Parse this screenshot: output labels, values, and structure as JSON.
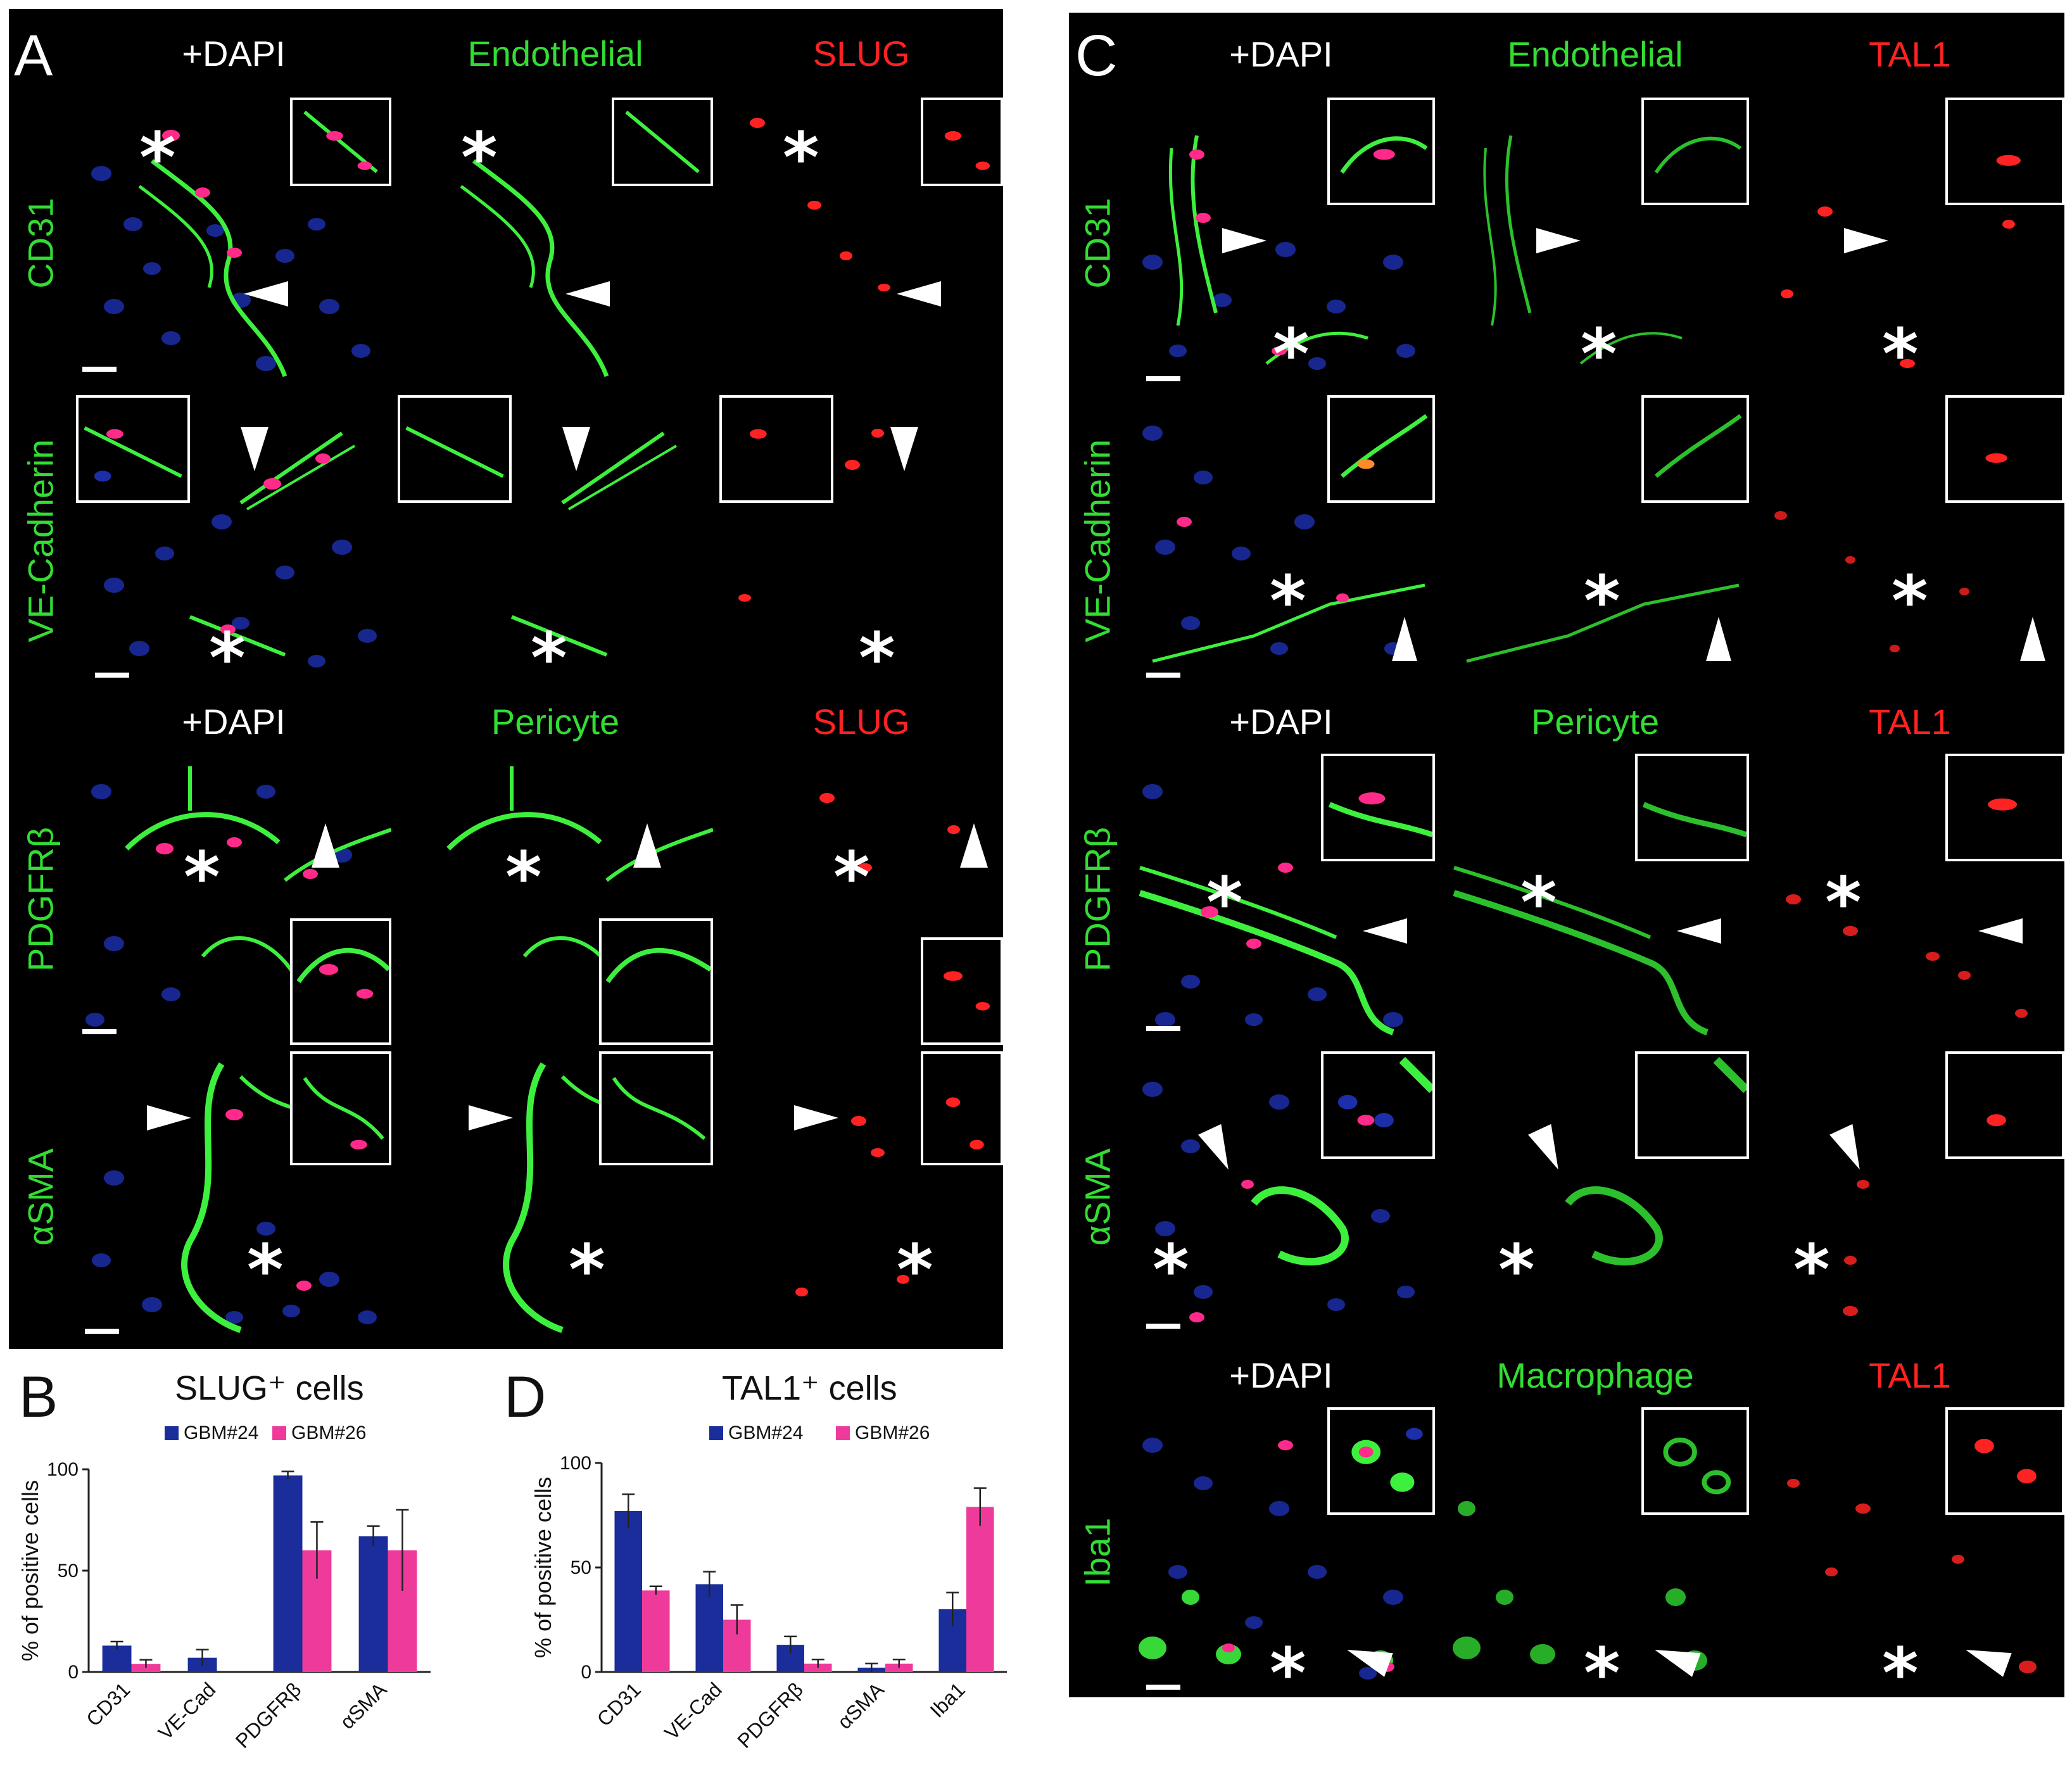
{
  "panel_a": {
    "letter": "A",
    "header_top": [
      "+DAPI",
      "Endothelial",
      "SLUG"
    ],
    "header_mid": [
      "+DAPI",
      "Pericyte",
      "SLUG"
    ],
    "rows": [
      "CD31",
      "VE-Cadherin",
      "PDGFRβ",
      "αSMA"
    ]
  },
  "panel_c": {
    "letter": "C",
    "header_top": [
      "+DAPI",
      "Endothelial",
      "TAL1"
    ],
    "header_mid": [
      "+DAPI",
      "Pericyte",
      "TAL1"
    ],
    "header_bot": [
      "+DAPI",
      "Macrophage",
      "TAL1"
    ],
    "rows": [
      "CD31",
      "VE-Cadherin",
      "PDGFRβ",
      "αSMA",
      "Iba1"
    ]
  },
  "markers": {
    "star": "*"
  },
  "colors": {
    "green_label": "#33dd33",
    "red_label": "#ff2222",
    "white_label": "#ffffff",
    "gbm24": "#1a2d9a",
    "gbm26": "#ee3b9b"
  },
  "chart_data": [
    {
      "panel_letter": "B",
      "type": "bar",
      "title": "SLUG⁺ cells",
      "ylabel": "% of positive cells",
      "ylim": [
        0,
        100
      ],
      "yticks": [
        "0",
        "50",
        "100"
      ],
      "categories": [
        "CD31",
        "VE-Cad",
        "PDGFRβ",
        "αSMA"
      ],
      "series": [
        {
          "name": "GBM#24",
          "values": [
            13,
            7,
            97,
            67
          ],
          "errors": [
            2,
            4,
            2,
            5
          ]
        },
        {
          "name": "GBM#26",
          "values": [
            4,
            0,
            60,
            60
          ],
          "errors": [
            2,
            0,
            14,
            20
          ]
        }
      ],
      "legend": "top"
    },
    {
      "panel_letter": "D",
      "type": "bar",
      "title": "TAL1⁺ cells",
      "ylabel": "% of positive cells",
      "ylim": [
        0,
        100
      ],
      "yticks": [
        "0",
        "50",
        "100"
      ],
      "categories": [
        "CD31",
        "VE-Cad",
        "PDGFRβ",
        "αSMA",
        "Iba1"
      ],
      "series": [
        {
          "name": "GBM#24",
          "values": [
            77,
            42,
            13,
            2,
            30
          ],
          "errors": [
            8,
            6,
            4,
            2,
            8
          ]
        },
        {
          "name": "GBM#26",
          "values": [
            39,
            25,
            4,
            4,
            79
          ],
          "errors": [
            2,
            7,
            2,
            2,
            9
          ]
        }
      ],
      "legend": "top"
    }
  ]
}
